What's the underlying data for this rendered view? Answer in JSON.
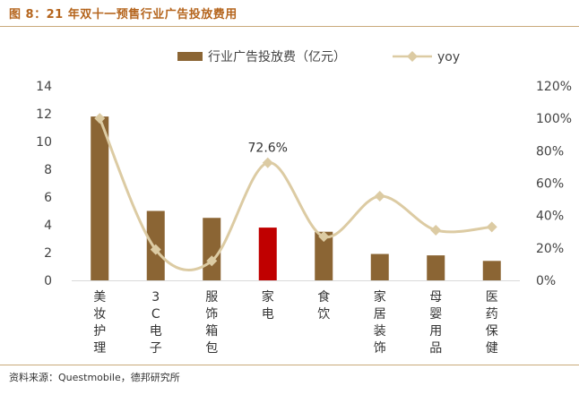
{
  "header": {
    "title": "图 8：21 年双十一预售行业广告投放费用"
  },
  "footer": {
    "source": "资料来源：Questmobile，德邦研究所"
  },
  "chart_data": {
    "type": "bar",
    "categories": [
      "美妆护理",
      "3C电子",
      "服饰箱包",
      "家电",
      "食饮",
      "家居装饰",
      "母婴用品",
      "医药保健"
    ],
    "category_lines": [
      [
        "美",
        "妆",
        "护",
        "理"
      ],
      [
        "3",
        "C",
        "电",
        "子"
      ],
      [
        "服",
        "饰",
        "箱",
        "包"
      ],
      [
        "家",
        "电"
      ],
      [
        "食",
        "饮"
      ],
      [
        "家",
        "居",
        "装",
        "饰"
      ],
      [
        "母",
        "婴",
        "用",
        "品"
      ],
      [
        "医",
        "药",
        "保",
        "健"
      ]
    ],
    "series": [
      {
        "name": "行业广告投放费（亿元）",
        "type": "bar",
        "axis": "left",
        "values": [
          11.8,
          5.0,
          4.5,
          3.8,
          3.5,
          1.9,
          1.8,
          1.4
        ]
      },
      {
        "name": "yoy",
        "type": "line",
        "axis": "right",
        "values": [
          100,
          19,
          12,
          72.6,
          27,
          52,
          31,
          33
        ]
      }
    ],
    "highlight_index": 3,
    "annotation": {
      "text": "72.6%",
      "index": 3
    },
    "y_left": {
      "min": 0,
      "max": 14,
      "ticks": [
        "0",
        "2",
        "4",
        "6",
        "8",
        "10",
        "12",
        "14"
      ]
    },
    "y_right": {
      "min": 0,
      "max": 120,
      "ticks": [
        "0%",
        "20%",
        "40%",
        "60%",
        "80%",
        "100%",
        "120%"
      ]
    },
    "colors": {
      "bar": "#8b6534",
      "highlight": "#c00000",
      "line": "#dccba3",
      "title": "#b5651d"
    },
    "legend": "top-center",
    "grid": false
  }
}
